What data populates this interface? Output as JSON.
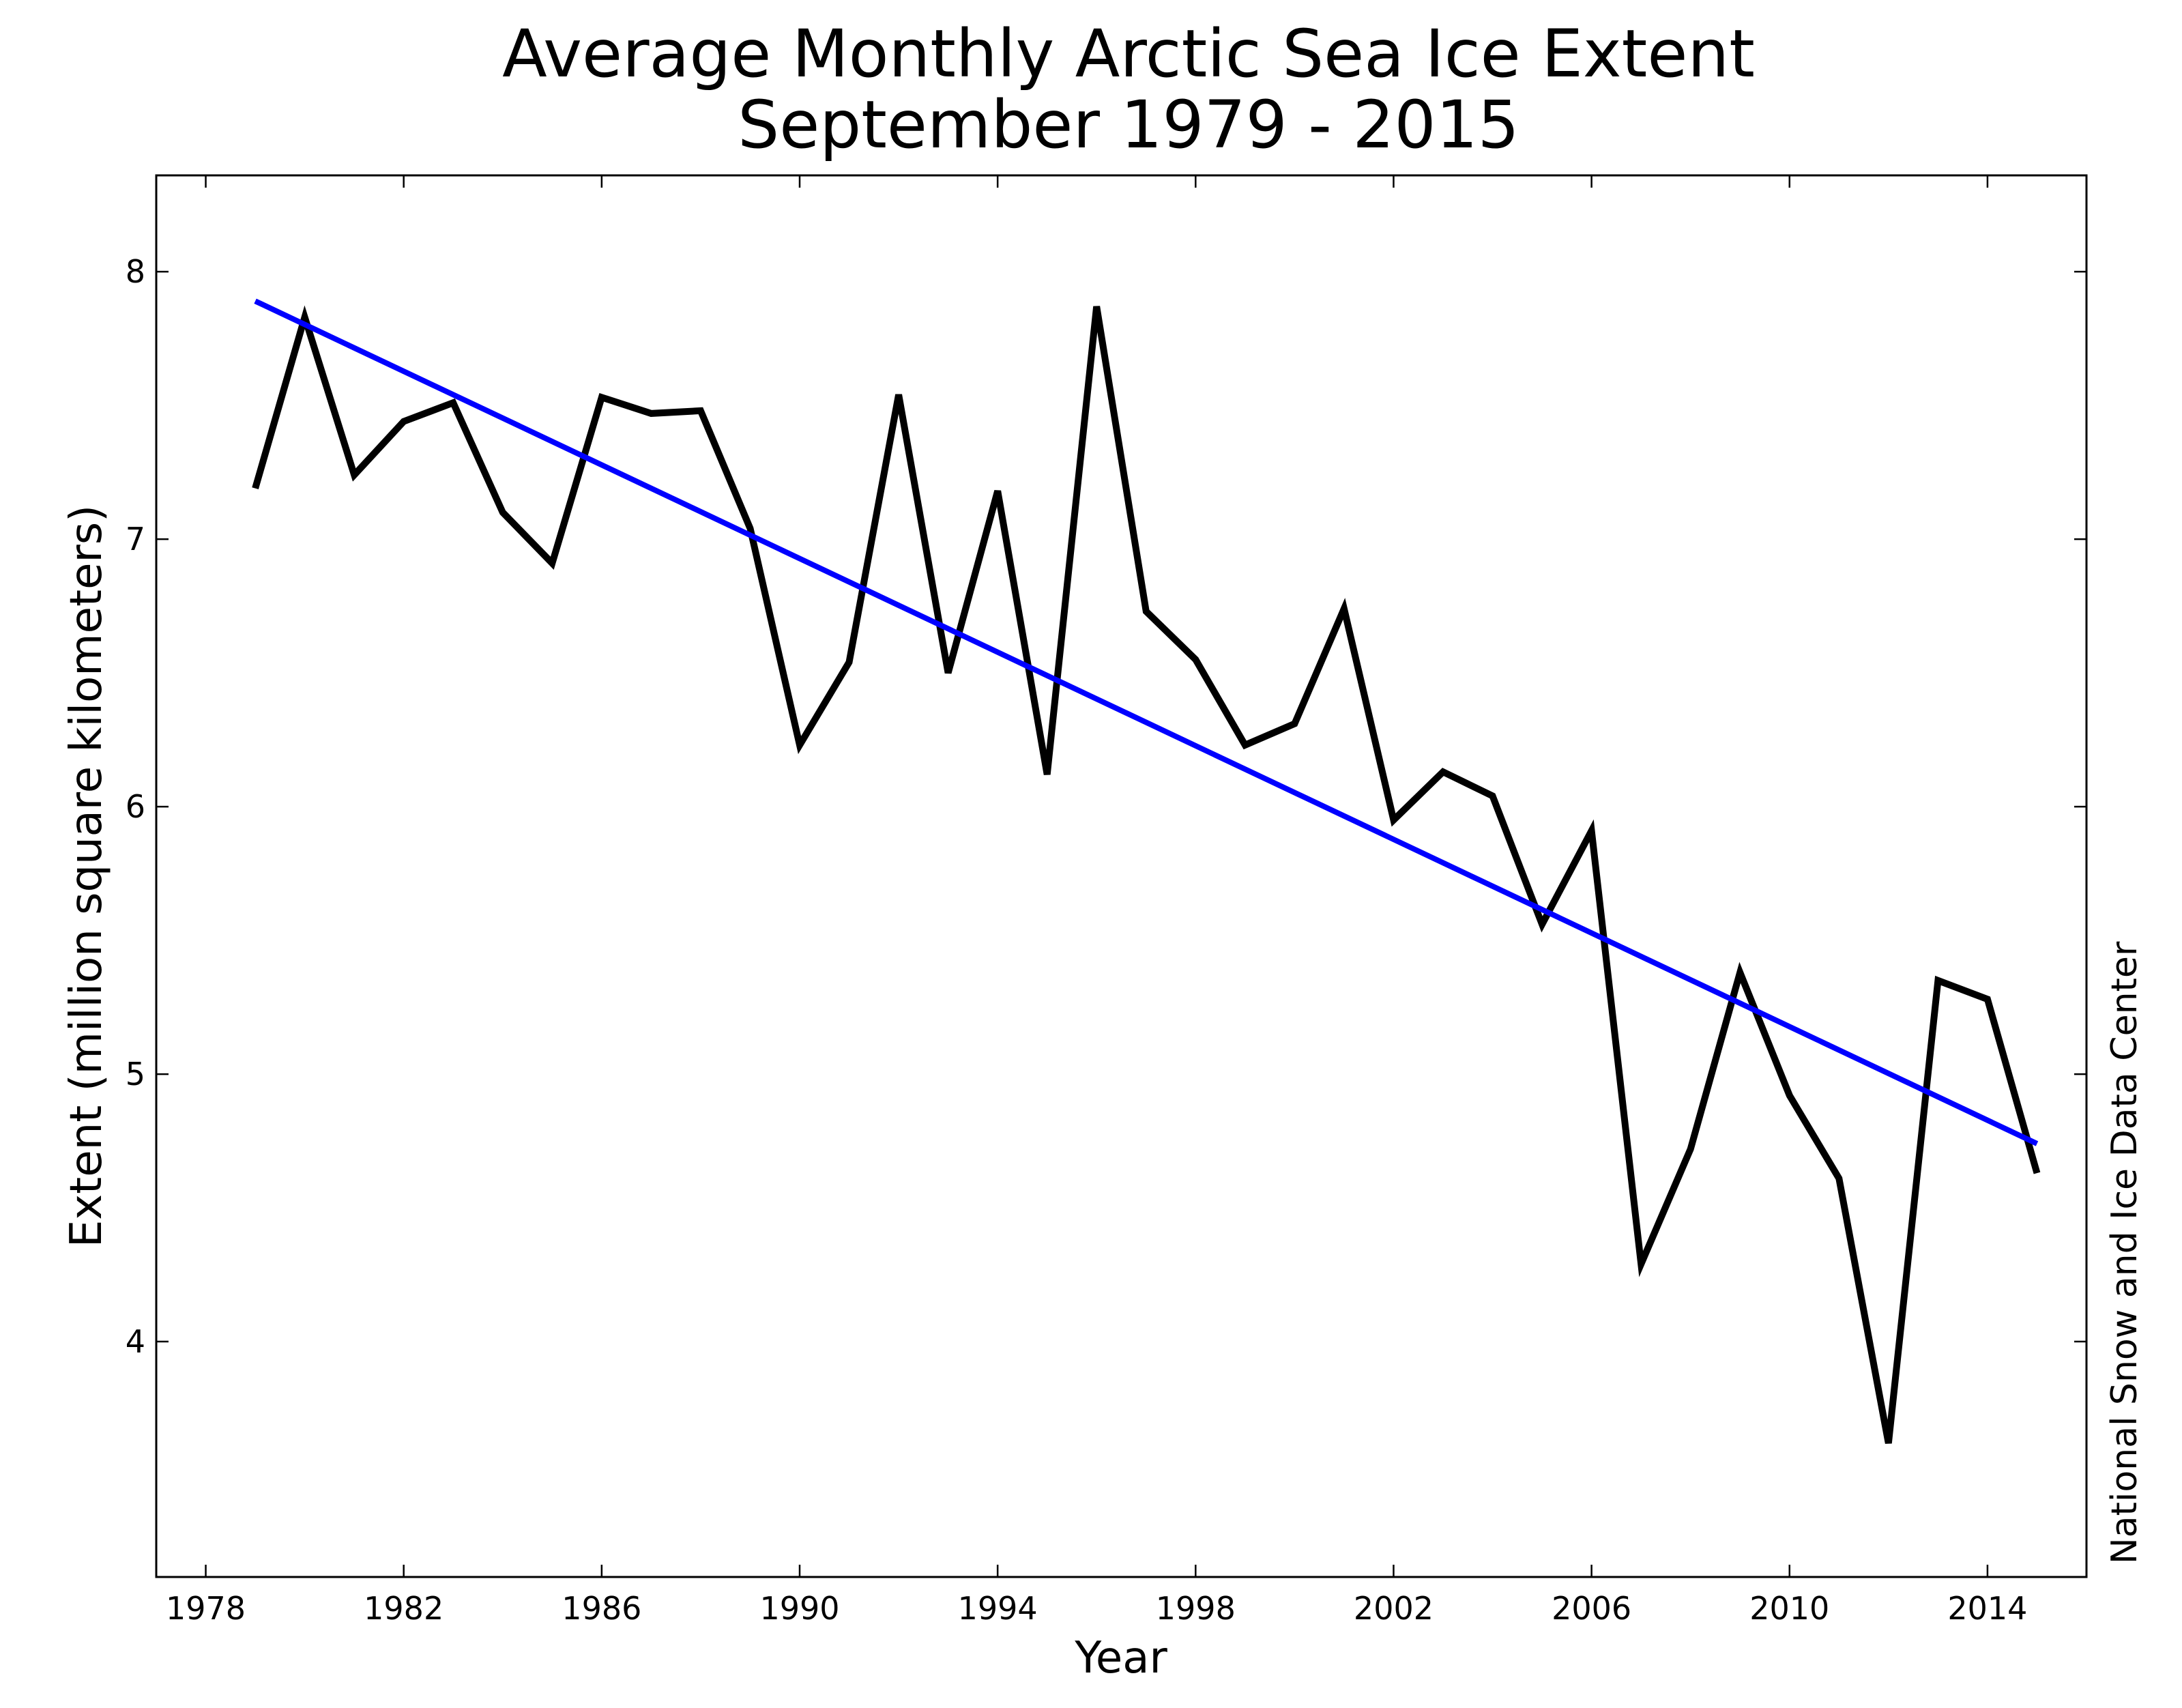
{
  "chart_data": {
    "type": "line",
    "title": "Average Monthly Arctic Sea Ice Extent",
    "subtitle": "September 1979 - 2015",
    "xlabel": "Year",
    "ylabel": "Extent (million square kilometers)",
    "side_note": "National Snow and Ice Data Center",
    "xlim": [
      1977,
      2016
    ],
    "ylim": [
      3.12,
      8.36
    ],
    "x_ticks": [
      "1978",
      "1982",
      "1986",
      "1990",
      "1994",
      "1998",
      "2002",
      "2006",
      "2010",
      "2014"
    ],
    "y_ticks": [
      "4",
      "5",
      "6",
      "7",
      "8"
    ],
    "grid": false,
    "series": [
      {
        "color": "#000000",
        "x": [
          1979,
          1980,
          1981,
          1982,
          1983,
          1984,
          1985,
          1986,
          1987,
          1988,
          1989,
          1990,
          1991,
          1992,
          1993,
          1994,
          1995,
          1996,
          1997,
          1998,
          1999,
          2000,
          2001,
          2002,
          2003,
          2004,
          2005,
          2006,
          2007,
          2008,
          2009,
          2010,
          2011,
          2012,
          2013,
          2014,
          2015
        ],
        "values": [
          7.19,
          7.83,
          7.24,
          7.44,
          7.51,
          7.1,
          6.91,
          7.53,
          7.47,
          7.48,
          7.04,
          6.23,
          6.54,
          7.54,
          6.5,
          7.18,
          6.12,
          7.87,
          6.73,
          6.55,
          6.23,
          6.31,
          6.74,
          5.95,
          6.13,
          6.04,
          5.56,
          5.91,
          4.29,
          4.72,
          5.38,
          4.92,
          4.61,
          3.62,
          5.35,
          5.28,
          4.63
        ]
      },
      {
        "color": "#0000ff",
        "x": [
          1979,
          2015
        ],
        "values": [
          7.89,
          4.74
        ]
      }
    ]
  }
}
